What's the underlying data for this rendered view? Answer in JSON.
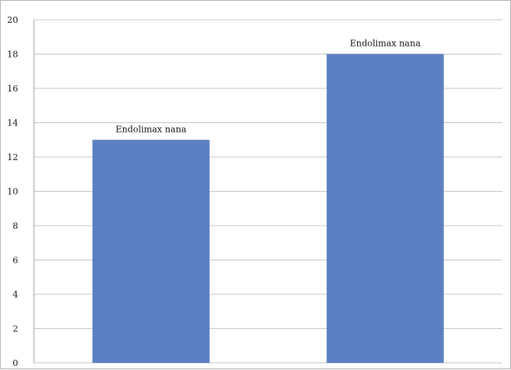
{
  "chart_data": {
    "type": "bar",
    "title": "",
    "xlabel": "",
    "ylabel": "",
    "categories": [
      "",
      ""
    ],
    "values": [
      13,
      18
    ],
    "data_labels": [
      "Endolimax nana",
      "Endolimax nana"
    ],
    "ylim": [
      0,
      20
    ],
    "yticks": [
      0,
      2,
      4,
      6,
      8,
      10,
      12,
      14,
      16,
      18,
      20
    ],
    "grid": "horizontal",
    "legend": "none",
    "bar_color": "#5b7fc1"
  }
}
